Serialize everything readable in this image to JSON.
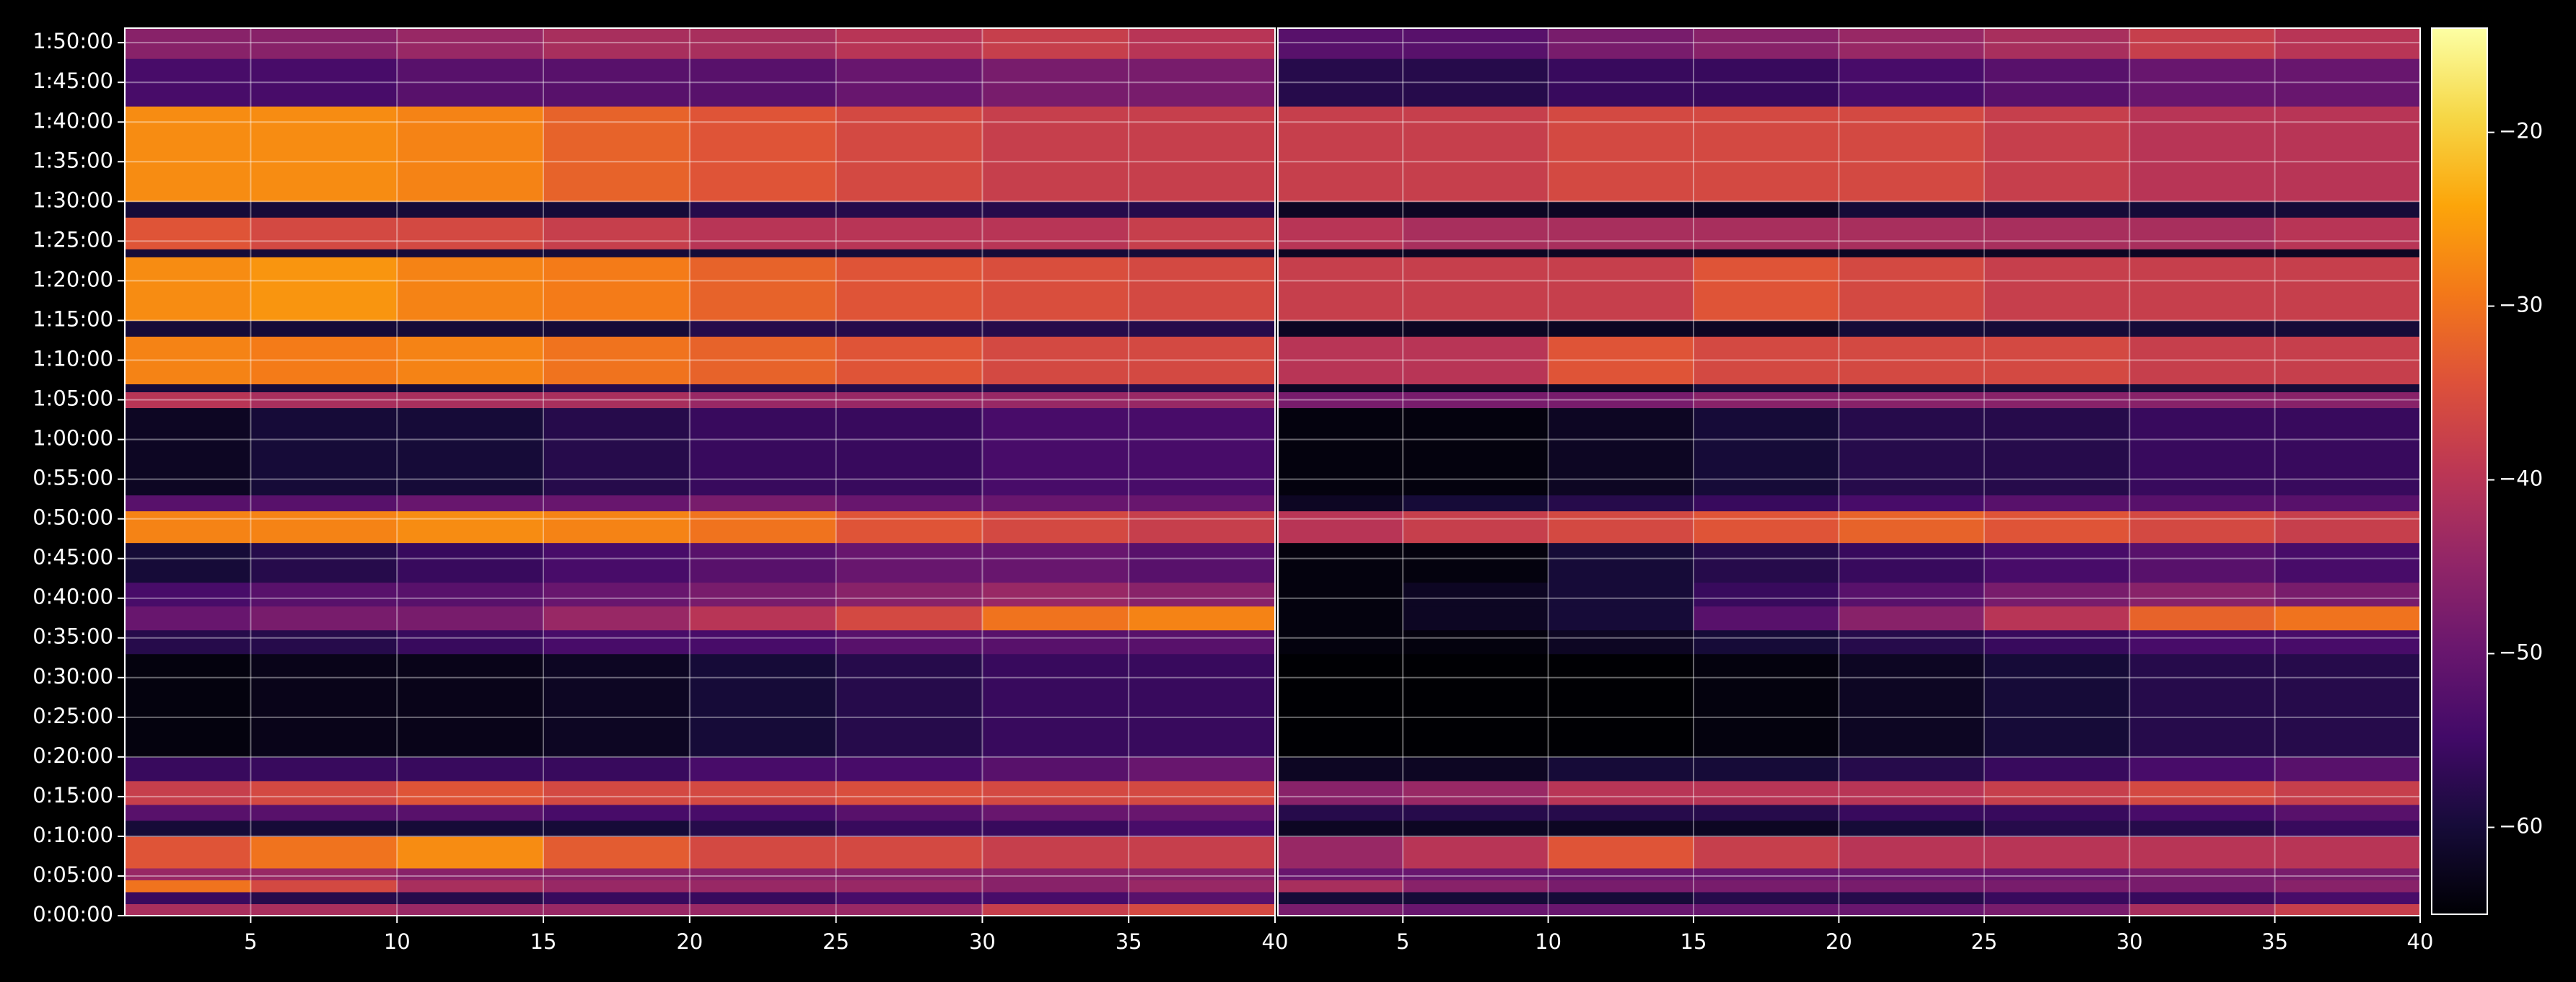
{
  "chart_data": {
    "type": "heatmap",
    "colormap": "inferno",
    "clim": [
      -65,
      -14
    ],
    "grid": true,
    "xlim": [
      0.7,
      40
    ],
    "xticks": [
      5,
      10,
      15,
      20,
      25,
      30,
      35,
      40
    ],
    "ylim": [
      0,
      6710
    ],
    "yticks": [
      {
        "value": 0,
        "label": "0:00:00"
      },
      {
        "value": 300,
        "label": "0:05:00"
      },
      {
        "value": 600,
        "label": "0:10:00"
      },
      {
        "value": 900,
        "label": "0:15:00"
      },
      {
        "value": 1200,
        "label": "0:20:00"
      },
      {
        "value": 1500,
        "label": "0:25:00"
      },
      {
        "value": 1800,
        "label": "0:30:00"
      },
      {
        "value": 2100,
        "label": "0:35:00"
      },
      {
        "value": 2400,
        "label": "0:40:00"
      },
      {
        "value": 2700,
        "label": "0:45:00"
      },
      {
        "value": 3000,
        "label": "0:50:00"
      },
      {
        "value": 3300,
        "label": "0:55:00"
      },
      {
        "value": 3600,
        "label": "1:00:00"
      },
      {
        "value": 3900,
        "label": "1:05:00"
      },
      {
        "value": 4200,
        "label": "1:10:00"
      },
      {
        "value": 4500,
        "label": "1:15:00"
      },
      {
        "value": 4800,
        "label": "1:20:00"
      },
      {
        "value": 5100,
        "label": "1:25:00"
      },
      {
        "value": 5400,
        "label": "1:30:00"
      },
      {
        "value": 5700,
        "label": "1:35:00"
      },
      {
        "value": 6000,
        "label": "1:40:00"
      },
      {
        "value": 6300,
        "label": "1:45:00"
      },
      {
        "value": 6600,
        "label": "1:50:00"
      }
    ],
    "cticks": [
      {
        "value": -20,
        "label": "−20"
      },
      {
        "value": -30,
        "label": "−30"
      },
      {
        "value": -40,
        "label": "−40"
      },
      {
        "value": -50,
        "label": "−50"
      },
      {
        "value": -60,
        "label": "−60"
      }
    ],
    "x_edges": [
      0.7,
      5,
      10,
      15,
      20,
      25,
      30,
      35,
      40
    ],
    "y_edges": [
      0,
      90,
      180,
      270,
      360,
      600,
      720,
      840,
      1020,
      1200,
      1980,
      2160,
      2340,
      2520,
      2820,
      3060,
      3180,
      3840,
      3960,
      4020,
      4380,
      4500,
      4980,
      5040,
      5280,
      5400,
      6120,
      6480,
      6710
    ],
    "panels": [
      {
        "values": [
          [
            -42,
            -42,
            -44,
            -44,
            -44,
            -44,
            -38,
            -36
          ],
          [
            -56,
            -58,
            -58,
            -56,
            -56,
            -54,
            -54,
            -52
          ],
          [
            -30,
            -36,
            -42,
            -44,
            -44,
            -44,
            -46,
            -44
          ],
          [
            -44,
            -44,
            -46,
            -46,
            -46,
            -46,
            -46,
            -46
          ],
          [
            -34,
            -30,
            -27,
            -33,
            -36,
            -36,
            -38,
            -38
          ],
          [
            -60,
            -60,
            -60,
            -60,
            -58,
            -56,
            -56,
            -54
          ],
          [
            -52,
            -52,
            -52,
            -54,
            -54,
            -52,
            -50,
            -50
          ],
          [
            -38,
            -36,
            -34,
            -36,
            -36,
            -35,
            -36,
            -36
          ],
          [
            -56,
            -56,
            -56,
            -56,
            -54,
            -54,
            -52,
            -50
          ],
          [
            -64,
            -63,
            -63,
            -62,
            -60,
            -58,
            -56,
            -56
          ],
          [
            -58,
            -58,
            -56,
            -54,
            -54,
            -52,
            -52,
            -52
          ],
          [
            -50,
            -48,
            -48,
            -44,
            -40,
            -36,
            -30,
            -28
          ],
          [
            -54,
            -52,
            -52,
            -50,
            -48,
            -46,
            -44,
            -46
          ],
          [
            -60,
            -58,
            -56,
            -54,
            -52,
            -50,
            -50,
            -52
          ],
          [
            -28,
            -28,
            -27,
            -28,
            -30,
            -34,
            -36,
            -38
          ],
          [
            -52,
            -52,
            -50,
            -50,
            -48,
            -50,
            -50,
            -50
          ],
          [
            -62,
            -60,
            -60,
            -58,
            -56,
            -56,
            -54,
            -54
          ],
          [
            -40,
            -42,
            -42,
            -42,
            -44,
            -44,
            -44,
            -44
          ],
          [
            -60,
            -60,
            -60,
            -58,
            -58,
            -58,
            -58,
            -58
          ],
          [
            -28,
            -29,
            -28,
            -30,
            -32,
            -34,
            -36,
            -36
          ],
          [
            -60,
            -60,
            -60,
            -60,
            -58,
            -58,
            -58,
            -58
          ],
          [
            -27,
            -26,
            -28,
            -29,
            -32,
            -34,
            -35,
            -36
          ],
          [
            -60,
            -60,
            -60,
            -60,
            -60,
            -60,
            -60,
            -60
          ],
          [
            -34,
            -36,
            -36,
            -38,
            -40,
            -40,
            -40,
            -38
          ],
          [
            -60,
            -60,
            -60,
            -60,
            -58,
            -58,
            -58,
            -58
          ],
          [
            -27,
            -27,
            -28,
            -32,
            -34,
            -36,
            -38,
            -38
          ],
          [
            -54,
            -54,
            -52,
            -52,
            -52,
            -50,
            -48,
            -48
          ],
          [
            -46,
            -46,
            -44,
            -42,
            -42,
            -40,
            -38,
            -40
          ]
        ]
      },
      {
        "values": [
          [
            -48,
            -50,
            -50,
            -50,
            -50,
            -48,
            -42,
            -38
          ],
          [
            -60,
            -60,
            -60,
            -58,
            -58,
            -56,
            -56,
            -54
          ],
          [
            -42,
            -46,
            -48,
            -48,
            -48,
            -48,
            -48,
            -46
          ],
          [
            -50,
            -50,
            -50,
            -50,
            -50,
            -50,
            -48,
            -48
          ],
          [
            -44,
            -40,
            -34,
            -38,
            -40,
            -40,
            -40,
            -40
          ],
          [
            -62,
            -62,
            -62,
            -62,
            -60,
            -58,
            -58,
            -56
          ],
          [
            -58,
            -58,
            -58,
            -58,
            -56,
            -56,
            -54,
            -52
          ],
          [
            -46,
            -44,
            -40,
            -40,
            -40,
            -38,
            -36,
            -38
          ],
          [
            -62,
            -62,
            -60,
            -60,
            -58,
            -56,
            -54,
            -52
          ],
          [
            -65,
            -65,
            -65,
            -64,
            -62,
            -60,
            -58,
            -58
          ],
          [
            -64,
            -64,
            -62,
            -60,
            -58,
            -56,
            -54,
            -54
          ],
          [
            -64,
            -62,
            -60,
            -52,
            -46,
            -40,
            -32,
            -30
          ],
          [
            -64,
            -62,
            -60,
            -56,
            -52,
            -48,
            -46,
            -48
          ],
          [
            -64,
            -64,
            -60,
            -58,
            -56,
            -54,
            -52,
            -54
          ],
          [
            -40,
            -38,
            -36,
            -34,
            -32,
            -34,
            -36,
            -38
          ],
          [
            -62,
            -60,
            -58,
            -56,
            -54,
            -52,
            -52,
            -52
          ],
          [
            -64,
            -64,
            -62,
            -60,
            -58,
            -58,
            -56,
            -56
          ],
          [
            -48,
            -48,
            -48,
            -46,
            -46,
            -46,
            -46,
            -46
          ],
          [
            -62,
            -62,
            -62,
            -60,
            -60,
            -60,
            -60,
            -60
          ],
          [
            -40,
            -40,
            -34,
            -36,
            -36,
            -36,
            -38,
            -38
          ],
          [
            -62,
            -62,
            -62,
            -62,
            -60,
            -60,
            -60,
            -60
          ],
          [
            -38,
            -38,
            -38,
            -34,
            -36,
            -38,
            -38,
            -38
          ],
          [
            -62,
            -62,
            -62,
            -62,
            -62,
            -62,
            -62,
            -62
          ],
          [
            -40,
            -42,
            -42,
            -42,
            -42,
            -42,
            -42,
            -40
          ],
          [
            -62,
            -62,
            -62,
            -62,
            -60,
            -60,
            -60,
            -60
          ],
          [
            -38,
            -38,
            -36,
            -36,
            -36,
            -38,
            -40,
            -40
          ],
          [
            -58,
            -58,
            -56,
            -56,
            -54,
            -52,
            -50,
            -50
          ],
          [
            -52,
            -52,
            -48,
            -46,
            -44,
            -42,
            -38,
            -40
          ]
        ]
      }
    ]
  }
}
